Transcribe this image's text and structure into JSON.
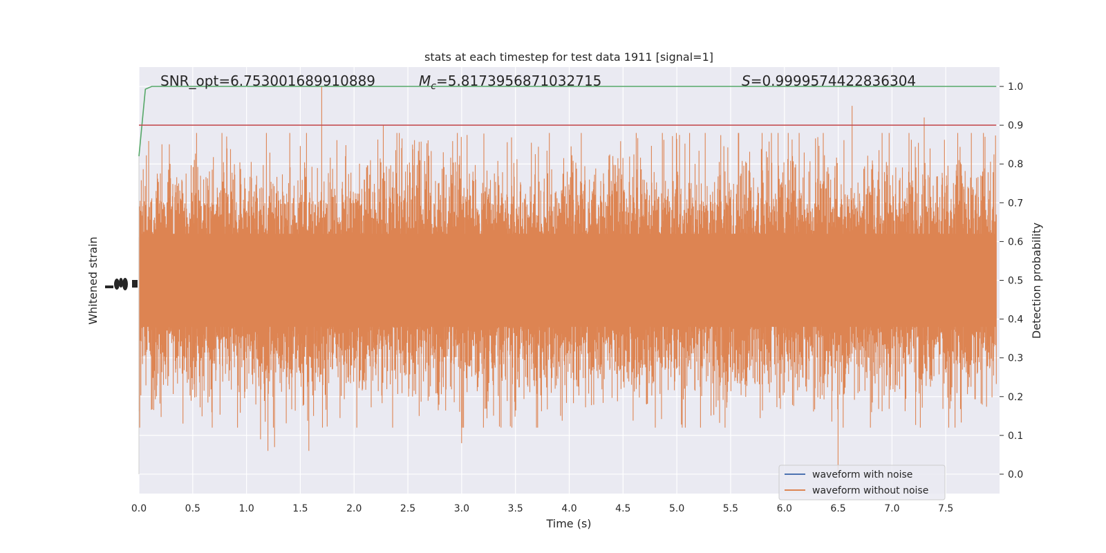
{
  "chart_data": {
    "type": "line",
    "title": "stats at each timestep for test data 1911 [signal=1]",
    "xlabel": "Time (s)",
    "ylabel_left": "Whitened strain",
    "ylabel_right": "Detection probability",
    "xlim": [
      0.0,
      8.0
    ],
    "ylim_right": [
      -0.05,
      1.05
    ],
    "x_ticks": [
      "0.0",
      "0.5",
      "1.0",
      "1.5",
      "2.0",
      "2.5",
      "3.0",
      "3.5",
      "4.0",
      "4.5",
      "5.0",
      "5.5",
      "6.0",
      "6.5",
      "7.0",
      "7.5"
    ],
    "y_ticks_right": [
      "0.0",
      "0.1",
      "0.2",
      "0.3",
      "0.4",
      "0.5",
      "0.6",
      "0.7",
      "0.8",
      "0.9",
      "1.0"
    ],
    "annotations": {
      "snr": "SNR_opt=6.753001689910889",
      "mc_symbol": "M",
      "mc_sub": "c",
      "mc_value": "=5.8173956871032715",
      "s_symbol": "S",
      "s_value": "=0.9999574422836304"
    },
    "legend": {
      "placement": "lower-right",
      "entries": [
        "waveform with noise",
        "waveform without noise"
      ]
    },
    "series": [
      {
        "name": "waveform with noise",
        "axis": "left",
        "color": "#4c72b0",
        "description_values": "dense whitened strain trace, hidden beneath the noiseless waveform"
      },
      {
        "name": "waveform without noise",
        "axis": "left",
        "color": "#dd8452",
        "envelope_center_prob": 0.5,
        "spikes": [
          {
            "x": 1.7,
            "y": 1.0
          },
          {
            "x": 2.27,
            "y": 0.9
          },
          {
            "x": 6.63,
            "y": 0.95
          },
          {
            "x": 7.3,
            "y": 0.92
          },
          {
            "x": 7.85,
            "y": 0.88
          },
          {
            "x": 1.58,
            "y": 0.06
          },
          {
            "x": 3.0,
            "y": 0.08
          },
          {
            "x": 6.5,
            "y": 0.01
          },
          {
            "x": 1.2,
            "y": 0.06
          },
          {
            "x": 1.26,
            "y": 0.07
          },
          {
            "x": 1.13,
            "y": 0.09
          },
          {
            "x": 5.45,
            "y": 0.12
          }
        ]
      },
      {
        "name": "detection probability",
        "axis": "right",
        "color": "#55a868",
        "x": [
          0.0,
          0.06,
          0.12,
          7.97
        ],
        "y": [
          0.82,
          0.993,
          1.0,
          1.0
        ]
      },
      {
        "name": "threshold",
        "axis": "right",
        "color": "#c44e52",
        "x": [
          0.0,
          7.97
        ],
        "y": [
          0.9,
          0.9
        ]
      }
    ],
    "grid": true,
    "background": "#eaeaf2"
  }
}
